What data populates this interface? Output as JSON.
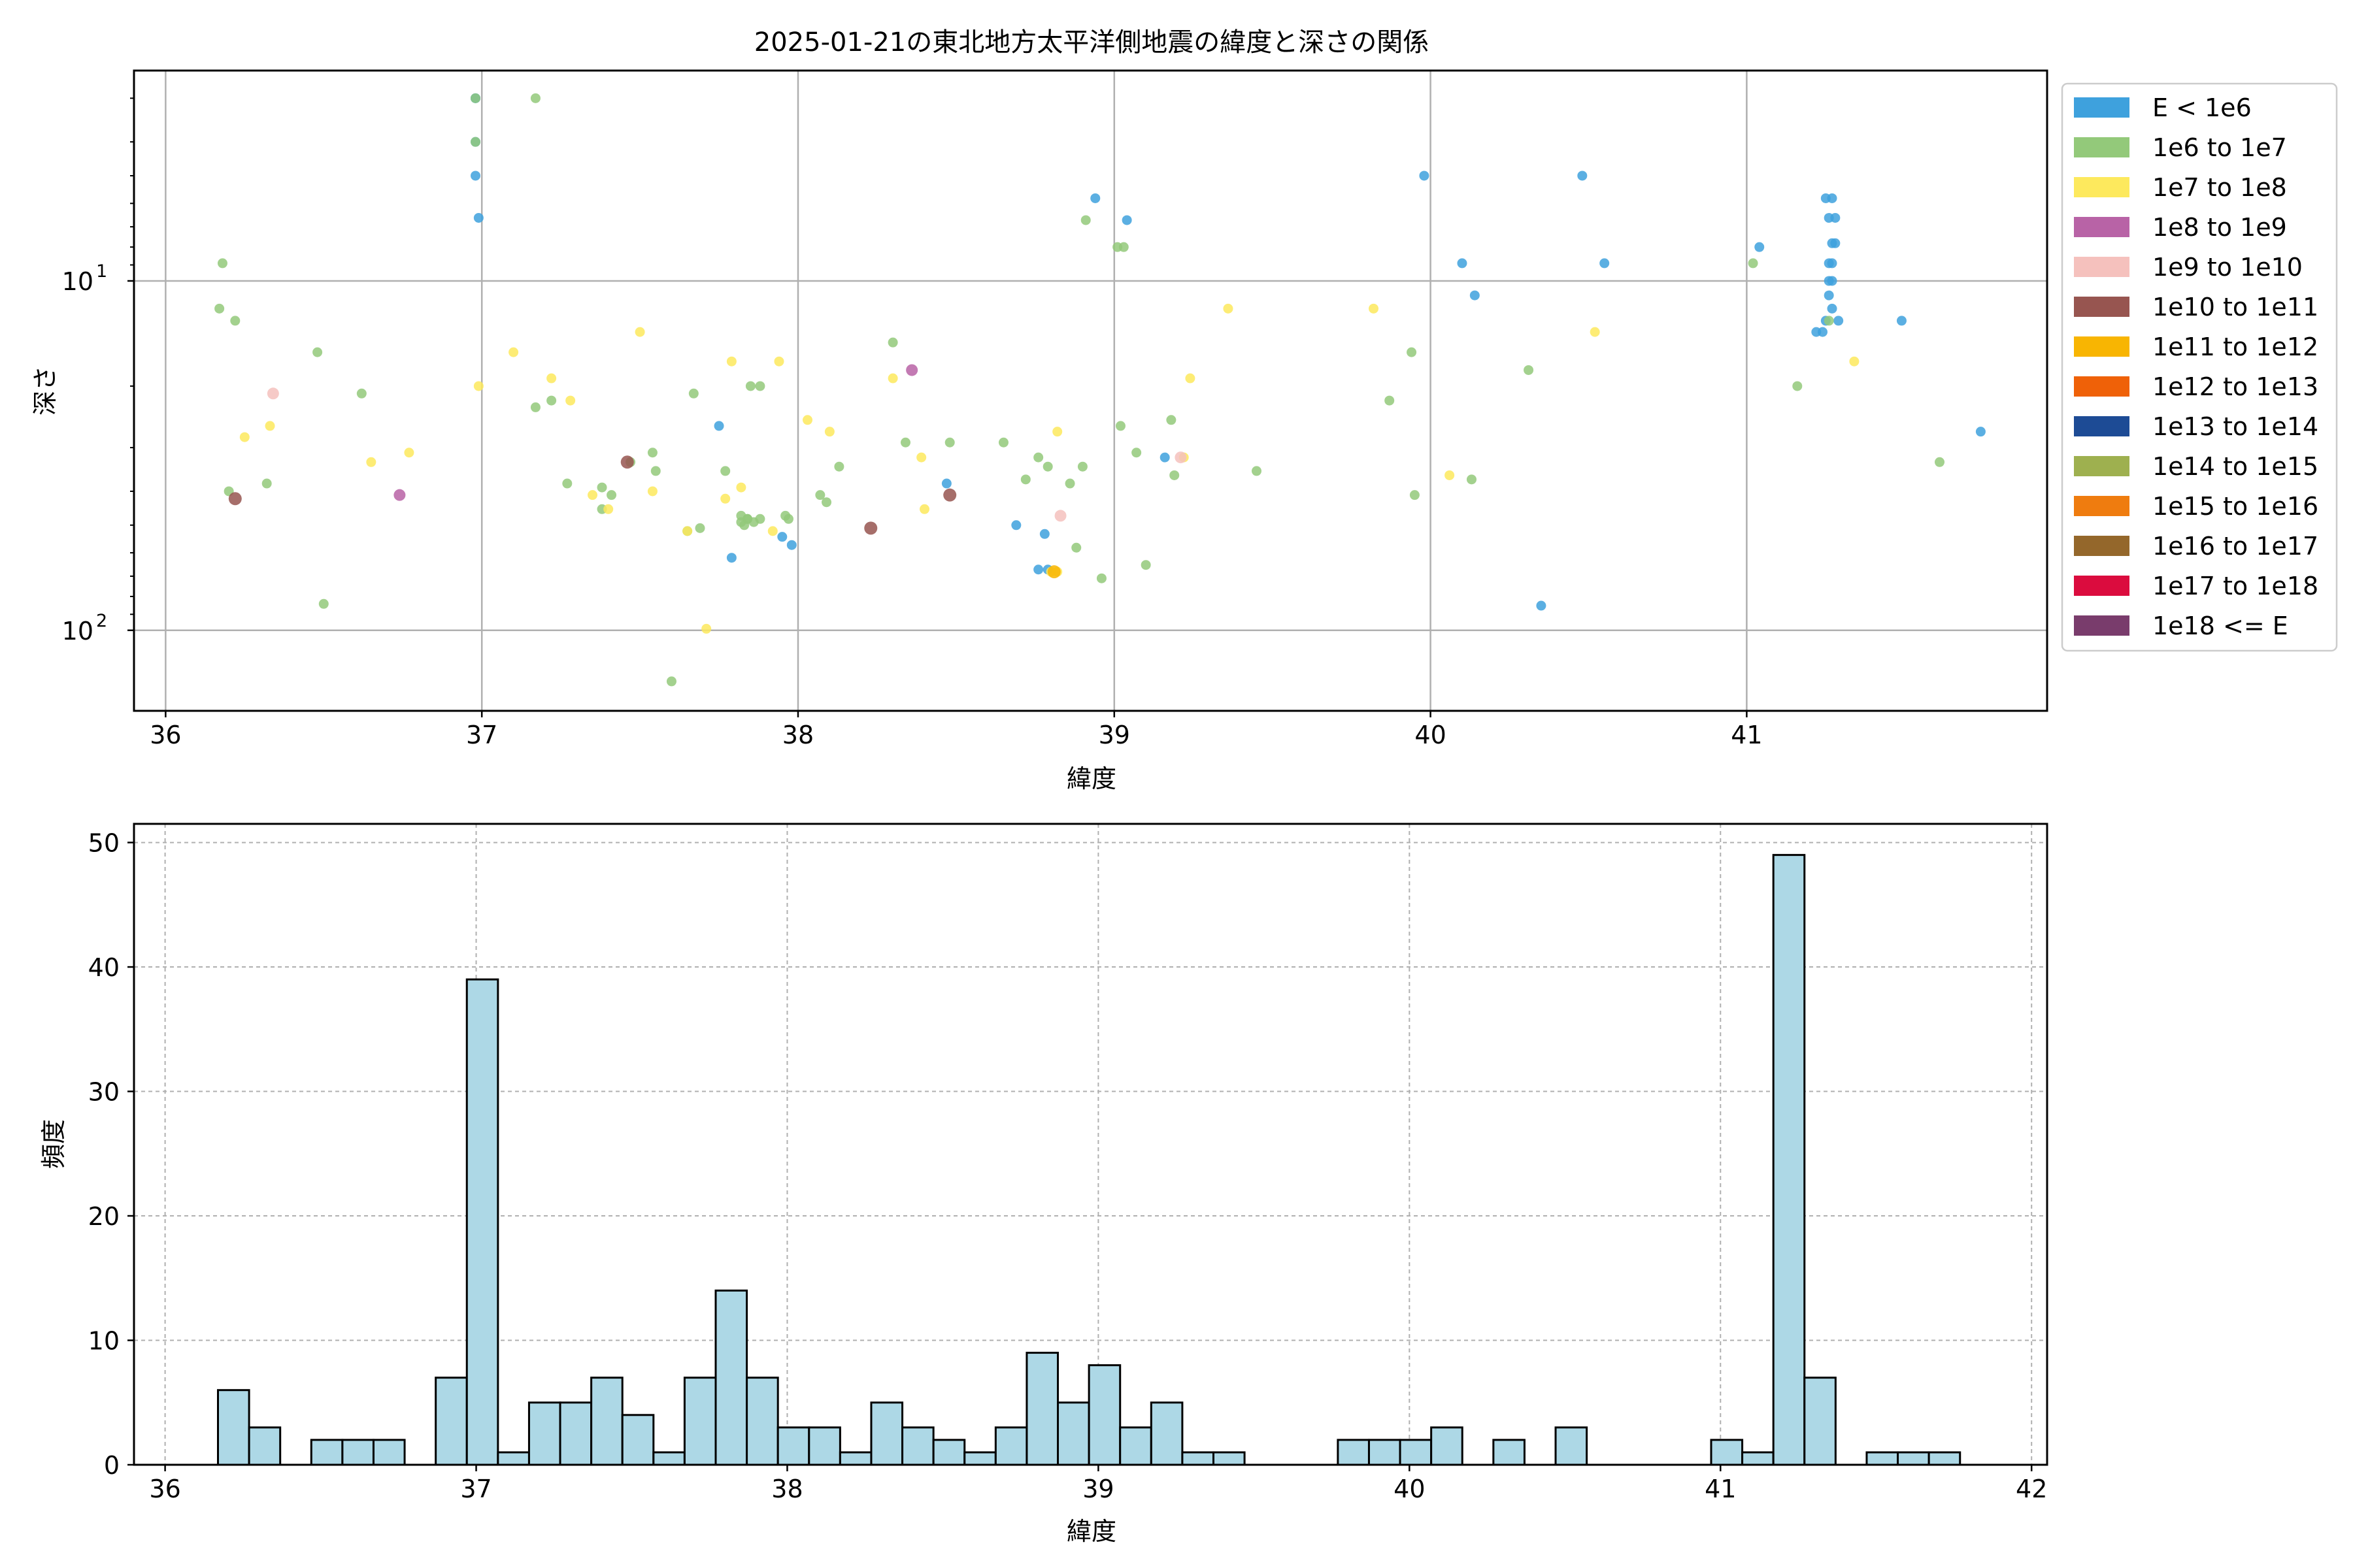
{
  "chart_data": [
    {
      "type": "scatter",
      "title": "2025-01-21の東北地方太平洋側地震の緯度と深さの関係",
      "xlabel": "緯度",
      "ylabel": "深さ",
      "xlim": [
        35.9,
        41.95
      ],
      "ylim": [
        170,
        2.5
      ],
      "yscale": "log",
      "y_inverted": true,
      "xticks": [
        36,
        37,
        38,
        39,
        40,
        41
      ],
      "xtick_labels": [
        "36",
        "37",
        "38",
        "39",
        "40",
        "41"
      ],
      "yticks": [
        10,
        100
      ],
      "ytick_labels": [
        "10^1",
        "10^2"
      ],
      "grid": true,
      "legend_position": "outside-right",
      "legend": [
        {
          "label": "E < 1e6",
          "color": "#3ea1dd"
        },
        {
          "label": "1e6 to 1e7",
          "color": "#93c97a"
        },
        {
          "label": "1e7 to 1e8",
          "color": "#fde95d"
        },
        {
          "label": "1e8 to 1e9",
          "color": "#b863a6"
        },
        {
          "label": "1e9 to 1e10",
          "color": "#f5c1bd"
        },
        {
          "label": "1e10 to 1e11",
          "color": "#975550"
        },
        {
          "label": "1e11 to 1e12",
          "color": "#f8b502"
        },
        {
          "label": "1e12 to 1e13",
          "color": "#ef6108"
        },
        {
          "label": "1e13 to 1e14",
          "color": "#1d4b95"
        },
        {
          "label": "1e14 to 1e15",
          "color": "#9eb04f"
        },
        {
          "label": "1e15 to 1e16",
          "color": "#ef7c0f"
        },
        {
          "label": "1e16 to 1e17",
          "color": "#94672b"
        },
        {
          "label": "1e17 to 1e18",
          "color": "#db0c3e"
        },
        {
          "label": "1e18 <= E",
          "color": "#793c6c"
        }
      ],
      "series": [
        {
          "class": 0,
          "points": [
            [
              36.98,
              3
            ],
            [
              36.98,
              3
            ],
            [
              36.98,
              4
            ],
            [
              36.98,
              5
            ],
            [
              36.99,
              6.6
            ],
            [
              37.75,
              26
            ],
            [
              37.79,
              62
            ],
            [
              37.95,
              54
            ],
            [
              37.98,
              57
            ],
            [
              38.47,
              38
            ],
            [
              38.69,
              50
            ],
            [
              38.76,
              67
            ],
            [
              38.78,
              53
            ],
            [
              38.79,
              67
            ],
            [
              38.94,
              5.8
            ],
            [
              39.04,
              6.7
            ],
            [
              39.16,
              32
            ],
            [
              39.98,
              5
            ],
            [
              40.1,
              8.9
            ],
            [
              40.14,
              11
            ],
            [
              40.35,
              85
            ],
            [
              40.48,
              5
            ],
            [
              40.55,
              8.9
            ],
            [
              41.04,
              8
            ],
            [
              41.22,
              14
            ],
            [
              41.24,
              14
            ],
            [
              41.25,
              13
            ],
            [
              41.25,
              5.8
            ],
            [
              41.27,
              5.8
            ],
            [
              41.26,
              6.6
            ],
            [
              41.28,
              6.6
            ],
            [
              41.27,
              7.8
            ],
            [
              41.28,
              7.8
            ],
            [
              41.26,
              8.9
            ],
            [
              41.27,
              8.9
            ],
            [
              41.26,
              10
            ],
            [
              41.27,
              10
            ],
            [
              41.26,
              11
            ],
            [
              41.27,
              12
            ],
            [
              41.29,
              13
            ],
            [
              41.49,
              13
            ],
            [
              41.74,
              27
            ]
          ]
        },
        {
          "class": 1,
          "points": [
            [
              36.17,
              12
            ],
            [
              36.18,
              8.9
            ],
            [
              36.22,
              13
            ],
            [
              36.2,
              40
            ],
            [
              36.32,
              38
            ],
            [
              36.48,
              16
            ],
            [
              36.5,
              84
            ],
            [
              36.62,
              21
            ],
            [
              36.98,
              4
            ],
            [
              36.98,
              3
            ],
            [
              37.17,
              3
            ],
            [
              37.17,
              23
            ],
            [
              37.22,
              22
            ],
            [
              37.27,
              38
            ],
            [
              37.38,
              39
            ],
            [
              37.41,
              41
            ],
            [
              37.38,
              45
            ],
            [
              37.47,
              33
            ],
            [
              37.54,
              31
            ],
            [
              37.55,
              35
            ],
            [
              37.6,
              140
            ],
            [
              37.65,
              52
            ],
            [
              37.67,
              21
            ],
            [
              37.69,
              51
            ],
            [
              37.77,
              35
            ],
            [
              37.82,
              47
            ],
            [
              37.83,
              50
            ],
            [
              37.84,
              48
            ],
            [
              37.86,
              49
            ],
            [
              37.88,
              48
            ],
            [
              37.85,
              20
            ],
            [
              37.88,
              20
            ],
            [
              37.84,
              48
            ],
            [
              37.82,
              49
            ],
            [
              37.96,
              47
            ],
            [
              37.97,
              48
            ],
            [
              38.07,
              41
            ],
            [
              38.09,
              43
            ],
            [
              38.13,
              34
            ],
            [
              38.3,
              15
            ],
            [
              38.34,
              29
            ],
            [
              38.48,
              29
            ],
            [
              38.65,
              29
            ],
            [
              38.72,
              37
            ],
            [
              38.76,
              32
            ],
            [
              38.79,
              34
            ],
            [
              38.86,
              38
            ],
            [
              38.88,
              58
            ],
            [
              38.9,
              34
            ],
            [
              38.96,
              71
            ],
            [
              38.91,
              6.7
            ],
            [
              39.01,
              8
            ],
            [
              39.03,
              8
            ],
            [
              39.02,
              26
            ],
            [
              39.07,
              31
            ],
            [
              39.1,
              65
            ],
            [
              39.19,
              36
            ],
            [
              39.18,
              25
            ],
            [
              39.45,
              35
            ],
            [
              39.87,
              22
            ],
            [
              39.94,
              16
            ],
            [
              39.95,
              41
            ],
            [
              40.13,
              37
            ],
            [
              40.31,
              18
            ],
            [
              41.02,
              8.9
            ],
            [
              41.16,
              20
            ],
            [
              41.26,
              13
            ],
            [
              41.61,
              33
            ]
          ]
        },
        {
          "class": 2,
          "points": [
            [
              36.25,
              28
            ],
            [
              36.33,
              26
            ],
            [
              36.65,
              33
            ],
            [
              36.77,
              31
            ],
            [
              36.99,
              20
            ],
            [
              37.1,
              16
            ],
            [
              37.22,
              19
            ],
            [
              37.28,
              22
            ],
            [
              37.35,
              41
            ],
            [
              37.4,
              45
            ],
            [
              37.5,
              14
            ],
            [
              37.54,
              40
            ],
            [
              37.65,
              52
            ],
            [
              37.71,
              99
            ],
            [
              37.77,
              42
            ],
            [
              37.79,
              17
            ],
            [
              37.82,
              39
            ],
            [
              37.92,
              52
            ],
            [
              37.94,
              17
            ],
            [
              38.03,
              25
            ],
            [
              38.1,
              27
            ],
            [
              38.3,
              19
            ],
            [
              38.39,
              32
            ],
            [
              38.4,
              45
            ],
            [
              38.82,
              27
            ],
            [
              38.8,
              68
            ],
            [
              38.82,
              68
            ],
            [
              39.36,
              12
            ],
            [
              39.22,
              32
            ],
            [
              39.24,
              19
            ],
            [
              39.82,
              12
            ],
            [
              40.06,
              36
            ],
            [
              40.52,
              14
            ],
            [
              41.34,
              17
            ]
          ]
        },
        {
          "class": 3,
          "points": [
            [
              36.74,
              41
            ],
            [
              38.36,
              18
            ]
          ]
        },
        {
          "class": 4,
          "points": [
            [
              36.34,
              21
            ],
            [
              38.83,
              47
            ],
            [
              39.21,
              32
            ]
          ]
        },
        {
          "class": 5,
          "points": [
            [
              36.22,
              42
            ],
            [
              37.46,
              33
            ],
            [
              38.23,
              51
            ],
            [
              38.48,
              41
            ]
          ]
        },
        {
          "class": 6,
          "points": [
            [
              38.81,
              68
            ]
          ]
        }
      ]
    },
    {
      "type": "bar",
      "title": "",
      "xlabel": "緯度",
      "ylabel": "頻度",
      "xlim": [
        35.9,
        42.05
      ],
      "ylim": [
        0,
        51.5
      ],
      "xticks": [
        36,
        37,
        38,
        39,
        40,
        41,
        42
      ],
      "xtick_labels": [
        "36",
        "37",
        "38",
        "39",
        "40",
        "41",
        "42"
      ],
      "yticks": [
        0,
        10,
        20,
        30,
        40,
        50
      ],
      "ytick_labels": [
        "0",
        "10",
        "20",
        "30",
        "40",
        "50"
      ],
      "grid": true,
      "bar_color": "#add8e6",
      "edge_color": "#000000",
      "bin_width": 0.1,
      "bin_start": 36.17,
      "counts": [
        6,
        3,
        0,
        2,
        2,
        2,
        0,
        7,
        39,
        1,
        5,
        5,
        7,
        4,
        1,
        7,
        14,
        7,
        3,
        3,
        1,
        5,
        3,
        2,
        1,
        3,
        9,
        5,
        8,
        3,
        5,
        1,
        1,
        0,
        0,
        0,
        2,
        2,
        2,
        3,
        0,
        2,
        0,
        3,
        0,
        0,
        0,
        0,
        2,
        1,
        49,
        7,
        0,
        1,
        1,
        1
      ]
    }
  ]
}
